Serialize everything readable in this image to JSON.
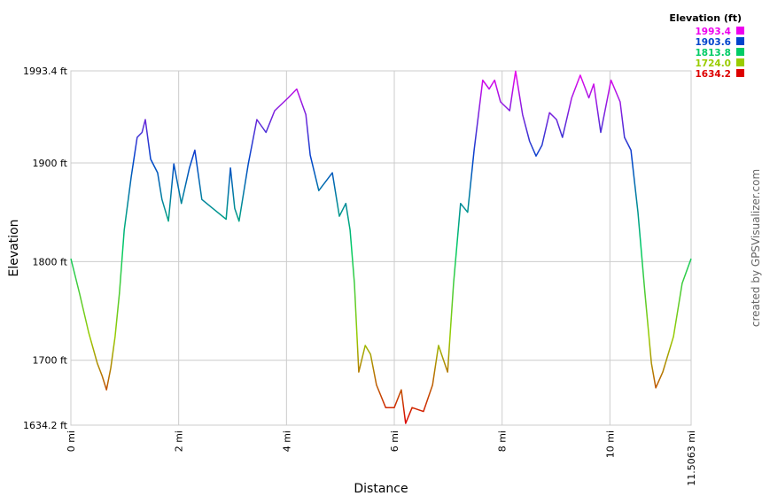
{
  "chart_data": {
    "type": "line",
    "x_label": "Distance",
    "y_label": "Elevation",
    "credit": "created by GPSVisualizer.com",
    "legend_title": "Elevation (ft)",
    "legend": [
      {
        "value": 1993.4,
        "label": "1993.4",
        "color": "#ee00ee"
      },
      {
        "value": 1903.6,
        "label": "1903.6",
        "color": "#0044cc"
      },
      {
        "value": 1813.8,
        "label": "1813.8",
        "color": "#00cc66"
      },
      {
        "value": 1724,
        "label": "1724.0",
        "color": "#99cc00"
      },
      {
        "value": 1634.2,
        "label": "1634.2",
        "color": "#dd0000"
      }
    ],
    "xlim": [
      0,
      11.5063
    ],
    "ylim": [
      1634.2,
      1993.4
    ],
    "xticks": [
      {
        "value": 0,
        "label": "0 mi"
      },
      {
        "value": 2,
        "label": "2 mi"
      },
      {
        "value": 4,
        "label": "4 mi"
      },
      {
        "value": 6,
        "label": "6 mi"
      },
      {
        "value": 8,
        "label": "8 mi"
      },
      {
        "value": 10,
        "label": "10 mi"
      },
      {
        "value": 11.5063,
        "label": "11.5063 mi"
      }
    ],
    "yticks": [
      {
        "value": 1634.2,
        "label": "1634.2 ft"
      },
      {
        "value": 1700,
        "label": "1700 ft"
      },
      {
        "value": 1800,
        "label": "1800 ft"
      },
      {
        "value": 1900,
        "label": "1900 ft"
      },
      {
        "value": 1993.4,
        "label": "1993.4 ft"
      }
    ],
    "grid": true,
    "x": [
      0,
      0.16,
      0.33,
      0.49,
      0.58,
      0.66,
      0.74,
      0.82,
      0.9,
      0.99,
      1.12,
      1.23,
      1.32,
      1.38,
      1.48,
      1.61,
      1.69,
      1.81,
      1.91,
      2.05,
      2.2,
      2.3,
      2.43,
      2.63,
      2.88,
      2.96,
      3.04,
      3.12,
      3.29,
      3.45,
      3.62,
      3.78,
      4.03,
      4.19,
      4.36,
      4.44,
      4.6,
      4.85,
      4.98,
      5.1,
      5.18,
      5.26,
      5.34,
      5.46,
      5.56,
      5.67,
      5.84,
      6,
      6.13,
      6.21,
      6.33,
      6.54,
      6.71,
      6.82,
      6.99,
      7.1,
      7.23,
      7.36,
      7.48,
      7.64,
      7.76,
      7.86,
      7.97,
      8.14,
      8.25,
      8.38,
      8.51,
      8.63,
      8.74,
      8.88,
      9.01,
      9.12,
      9.29,
      9.45,
      9.61,
      9.7,
      9.83,
      10.02,
      10.19,
      10.27,
      10.39,
      10.52,
      10.65,
      10.77,
      10.85,
      10.98,
      11.18,
      11.34,
      11.5063
    ],
    "values": [
      1803,
      1768,
      1728,
      1697,
      1684,
      1670,
      1692,
      1724,
      1768,
      1832,
      1886,
      1926,
      1931,
      1944,
      1904,
      1890,
      1863,
      1841,
      1899,
      1859,
      1895,
      1913,
      1863,
      1854,
      1843,
      1895,
      1854,
      1841,
      1899,
      1944,
      1931,
      1953,
      1966,
      1975,
      1949,
      1908,
      1872,
      1890,
      1846,
      1859,
      1832,
      1778,
      1688,
      1715,
      1706,
      1675,
      1652,
      1652,
      1670,
      1636,
      1652,
      1648,
      1675,
      1715,
      1688,
      1778,
      1859,
      1850,
      1913,
      1984,
      1975,
      1984,
      1962,
      1953,
      1993,
      1949,
      1922,
      1907,
      1918,
      1951,
      1944,
      1926,
      1966,
      1989,
      1966,
      1980,
      1931,
      1984,
      1962,
      1926,
      1913,
      1850,
      1768,
      1697,
      1672,
      1688,
      1724,
      1778,
      1803
    ]
  }
}
